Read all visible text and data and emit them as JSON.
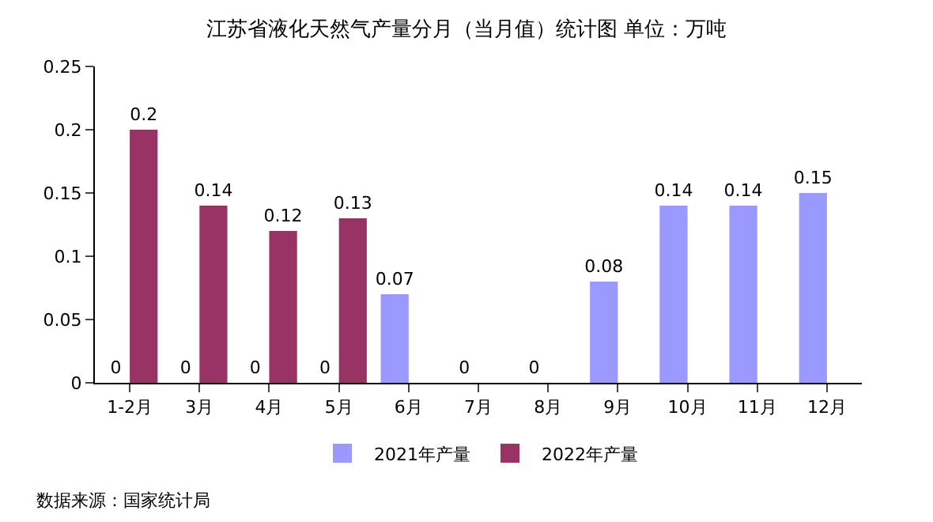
{
  "chart_data": {
    "type": "bar",
    "title": "江苏省液化天然气产量分月（当月值）统计图 单位：万吨",
    "categories": [
      "1-2月",
      "3月",
      "4月",
      "5月",
      "6月",
      "7月",
      "8月",
      "9月",
      "10月",
      "11月",
      "12月"
    ],
    "series": [
      {
        "name": "2021年产量",
        "color": "#9999ff",
        "values": [
          0,
          0,
          0,
          0,
          0.07,
          0,
          0,
          0.08,
          0.14,
          0.14,
          0.15
        ]
      },
      {
        "name": "2022年产量",
        "color": "#993366",
        "values": [
          0.2,
          0.14,
          0.12,
          0.13,
          null,
          null,
          null,
          null,
          null,
          null,
          null
        ]
      }
    ],
    "ylim": [
      0,
      0.25
    ],
    "yticks": [
      0,
      0.05,
      0.1,
      0.15,
      0.2,
      0.25
    ],
    "data_labels": true,
    "legend": "bottom",
    "annotations": [
      "数据来源：国家统计局"
    ]
  }
}
